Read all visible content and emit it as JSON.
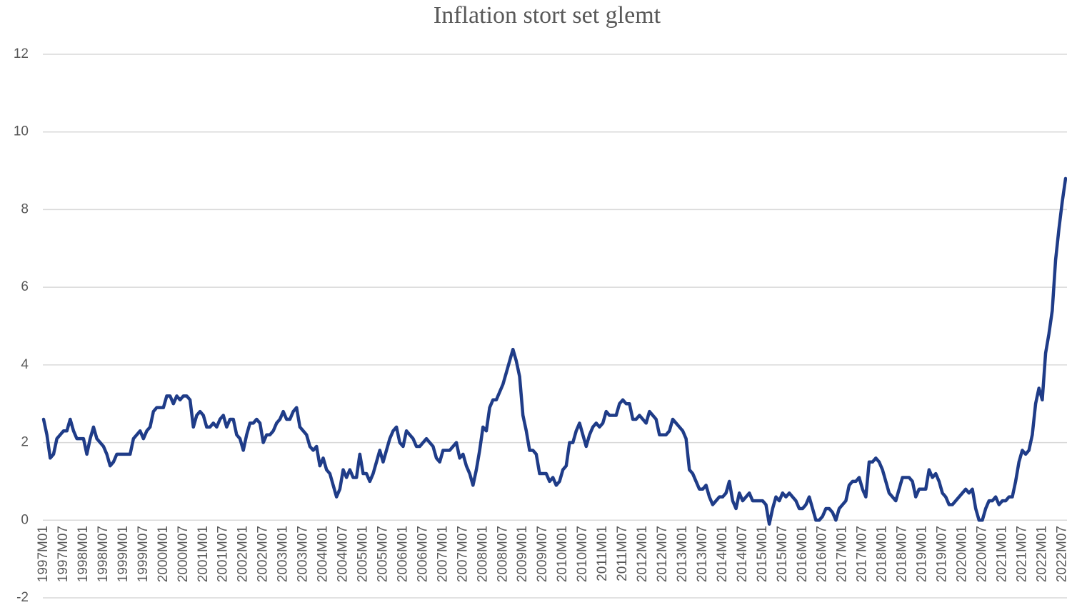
{
  "chart_data": {
    "type": "line",
    "title": "Inflation stort set glemt",
    "categories": [
      "1997M01",
      null,
      null,
      null,
      null,
      null,
      "1997M07",
      null,
      null,
      null,
      null,
      null,
      "1998M01",
      null,
      null,
      null,
      null,
      null,
      "1998M07",
      null,
      null,
      null,
      null,
      null,
      "1999M01",
      null,
      null,
      null,
      null,
      null,
      "1999M07",
      null,
      null,
      null,
      null,
      null,
      "2000M01",
      null,
      null,
      null,
      null,
      null,
      "2000M07",
      null,
      null,
      null,
      null,
      null,
      "2001M01",
      null,
      null,
      null,
      null,
      null,
      "2001M07",
      null,
      null,
      null,
      null,
      null,
      "2002M01",
      null,
      null,
      null,
      null,
      null,
      "2002M07",
      null,
      null,
      null,
      null,
      null,
      "2003M01",
      null,
      null,
      null,
      null,
      null,
      "2003M07",
      null,
      null,
      null,
      null,
      null,
      "2004M01",
      null,
      null,
      null,
      null,
      null,
      "2004M07",
      null,
      null,
      null,
      null,
      null,
      "2005M01",
      null,
      null,
      null,
      null,
      null,
      "2005M07",
      null,
      null,
      null,
      null,
      null,
      "2006M01",
      null,
      null,
      null,
      null,
      null,
      "2006M07",
      null,
      null,
      null,
      null,
      null,
      "2007M01",
      null,
      null,
      null,
      null,
      null,
      "2007M07",
      null,
      null,
      null,
      null,
      null,
      "2008M01",
      null,
      null,
      null,
      null,
      null,
      "2008M07",
      null,
      null,
      null,
      null,
      null,
      "2009M01",
      null,
      null,
      null,
      null,
      null,
      "2009M07",
      null,
      null,
      null,
      null,
      null,
      "2010M01",
      null,
      null,
      null,
      null,
      null,
      "2010M07",
      null,
      null,
      null,
      null,
      null,
      "2011M01",
      null,
      null,
      null,
      null,
      null,
      "2011M07",
      null,
      null,
      null,
      null,
      null,
      "2012M01",
      null,
      null,
      null,
      null,
      null,
      "2012M07",
      null,
      null,
      null,
      null,
      null,
      "2013M01",
      null,
      null,
      null,
      null,
      null,
      "2013M07",
      null,
      null,
      null,
      null,
      null,
      "2014M01",
      null,
      null,
      null,
      null,
      null,
      "2014M07",
      null,
      null,
      null,
      null,
      null,
      "2015M01",
      null,
      null,
      null,
      null,
      null,
      "2015M07",
      null,
      null,
      null,
      null,
      null,
      "2016M01",
      null,
      null,
      null,
      null,
      null,
      "2016M07",
      null,
      null,
      null,
      null,
      null,
      "2017M01",
      null,
      null,
      null,
      null,
      null,
      "2017M07",
      null,
      null,
      null,
      null,
      null,
      "2018M01",
      null,
      null,
      null,
      null,
      null,
      "2018M07",
      null,
      null,
      null,
      null,
      null,
      "2019M01",
      null,
      null,
      null,
      null,
      null,
      "2019M07",
      null,
      null,
      null,
      null,
      null,
      "2020M01",
      null,
      null,
      null,
      null,
      null,
      "2020M07",
      null,
      null,
      null,
      null,
      null,
      "2021M01",
      null,
      null,
      null,
      null,
      null,
      "2021M07",
      null,
      null,
      null,
      null,
      null,
      "2022M01",
      null,
      null,
      null,
      null,
      null,
      "2022M07",
      null
    ],
    "values": [
      2.6,
      2.2,
      1.6,
      1.7,
      2.1,
      2.2,
      2.3,
      2.3,
      2.6,
      2.3,
      2.1,
      2.1,
      2.1,
      1.7,
      2.1,
      2.4,
      2.1,
      2.0,
      1.9,
      1.7,
      1.4,
      1.5,
      1.7,
      1.7,
      1.7,
      1.7,
      1.7,
      2.1,
      2.2,
      2.3,
      2.1,
      2.3,
      2.4,
      2.8,
      2.9,
      2.9,
      2.9,
      3.2,
      3.2,
      3.0,
      3.2,
      3.1,
      3.2,
      3.2,
      3.1,
      2.4,
      2.7,
      2.8,
      2.7,
      2.4,
      2.4,
      2.5,
      2.4,
      2.6,
      2.7,
      2.4,
      2.6,
      2.6,
      2.2,
      2.1,
      1.8,
      2.2,
      2.5,
      2.5,
      2.6,
      2.5,
      2.0,
      2.2,
      2.2,
      2.3,
      2.5,
      2.6,
      2.8,
      2.6,
      2.6,
      2.8,
      2.9,
      2.4,
      2.3,
      2.2,
      1.9,
      1.8,
      1.9,
      1.4,
      1.6,
      1.3,
      1.2,
      0.9,
      0.6,
      0.8,
      1.3,
      1.1,
      1.3,
      1.1,
      1.1,
      1.7,
      1.2,
      1.2,
      1.0,
      1.2,
      1.5,
      1.8,
      1.5,
      1.8,
      2.1,
      2.3,
      2.4,
      2.0,
      1.9,
      2.3,
      2.2,
      2.1,
      1.9,
      1.9,
      2.0,
      2.1,
      2.0,
      1.9,
      1.6,
      1.5,
      1.8,
      1.8,
      1.8,
      1.9,
      2.0,
      1.6,
      1.7,
      1.4,
      1.2,
      0.9,
      1.3,
      1.8,
      2.4,
      2.3,
      2.9,
      3.1,
      3.1,
      3.3,
      3.5,
      3.8,
      4.1,
      4.4,
      4.1,
      3.7,
      2.7,
      2.3,
      1.8,
      1.8,
      1.7,
      1.2,
      1.2,
      1.2,
      1.0,
      1.1,
      0.9,
      1.0,
      1.3,
      1.4,
      2.0,
      2.0,
      2.3,
      2.5,
      2.2,
      1.9,
      2.2,
      2.4,
      2.5,
      2.4,
      2.5,
      2.8,
      2.7,
      2.7,
      2.7,
      3.0,
      3.1,
      3.0,
      3.0,
      2.6,
      2.6,
      2.7,
      2.6,
      2.5,
      2.8,
      2.7,
      2.6,
      2.2,
      2.2,
      2.2,
      2.3,
      2.6,
      2.5,
      2.4,
      2.3,
      2.1,
      1.3,
      1.2,
      1.0,
      0.8,
      0.8,
      0.9,
      0.6,
      0.4,
      0.5,
      0.6,
      0.6,
      0.7,
      1.0,
      0.5,
      0.3,
      0.7,
      0.5,
      0.6,
      0.7,
      0.5,
      0.5,
      0.5,
      0.5,
      0.4,
      -0.1,
      0.3,
      0.6,
      0.5,
      0.7,
      0.6,
      0.7,
      0.6,
      0.5,
      0.3,
      0.3,
      0.4,
      0.6,
      0.3,
      0.0,
      0.0,
      0.1,
      0.3,
      0.3,
      0.2,
      0.0,
      0.3,
      0.4,
      0.5,
      0.9,
      1.0,
      1.0,
      1.1,
      0.8,
      0.6,
      1.5,
      1.5,
      1.6,
      1.5,
      1.3,
      1.0,
      0.7,
      0.6,
      0.5,
      0.8,
      1.1,
      1.1,
      1.1,
      1.0,
      0.6,
      0.8,
      0.8,
      0.8,
      1.3,
      1.1,
      1.2,
      1.0,
      0.7,
      0.6,
      0.4,
      0.4,
      0.5,
      0.6,
      0.7,
      0.8,
      0.7,
      0.8,
      0.3,
      0.0,
      0.0,
      0.3,
      0.5,
      0.5,
      0.6,
      0.4,
      0.5,
      0.5,
      0.6,
      0.6,
      1.0,
      1.5,
      1.8,
      1.7,
      1.8,
      2.2,
      3.0,
      3.4,
      3.1,
      4.3,
      4.8,
      5.4,
      6.7,
      7.5,
      8.2,
      8.8
    ],
    "color": "#1f3c88",
    "ylim": [
      -2,
      12
    ],
    "yticks": [
      -2,
      0,
      2,
      4,
      6,
      8,
      10,
      12
    ],
    "grid": true
  }
}
